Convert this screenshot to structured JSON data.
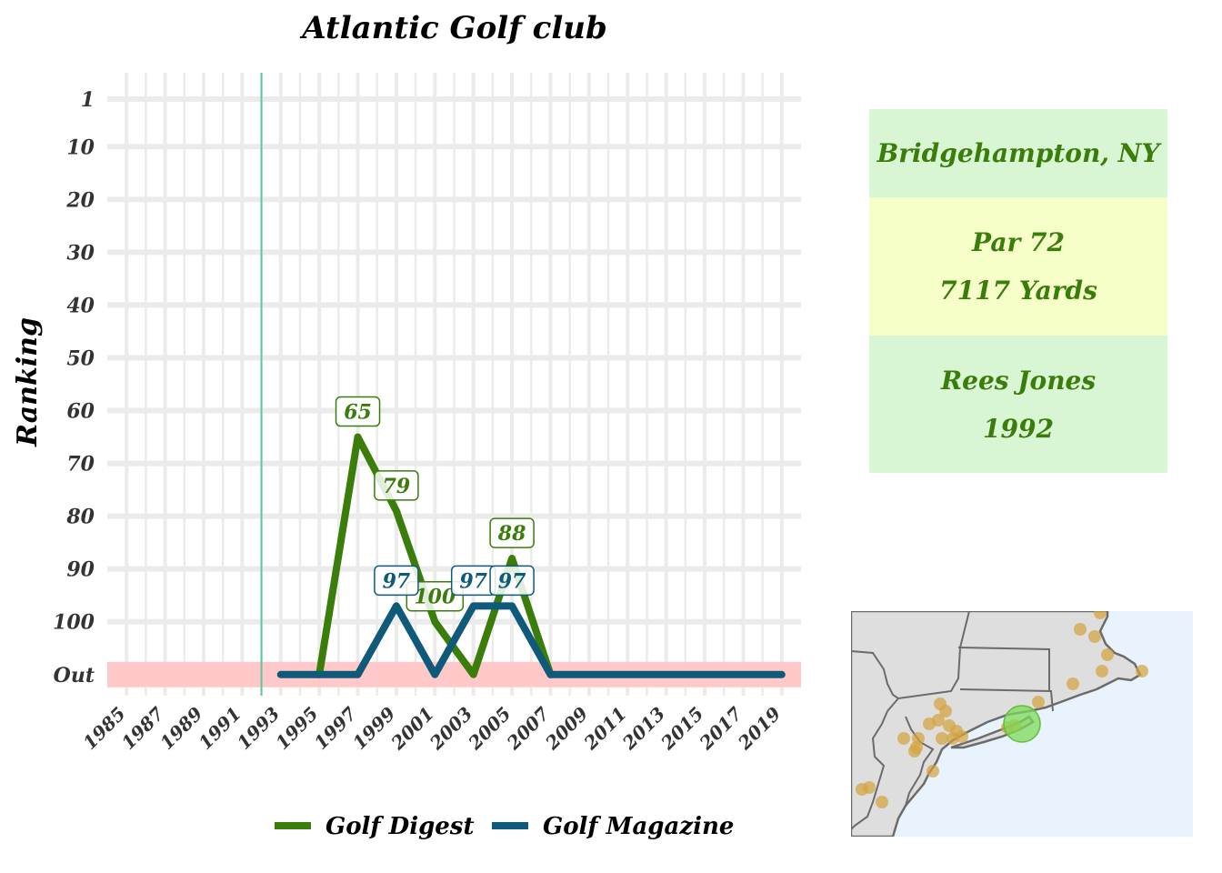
{
  "chart_data": {
    "type": "line",
    "title": "Atlantic Golf club",
    "xlabel": "",
    "ylabel": "Ranking",
    "x_ticks": [
      1985,
      1987,
      1989,
      1991,
      1993,
      1995,
      1997,
      1999,
      2001,
      2003,
      2005,
      2007,
      2009,
      2011,
      2013,
      2015,
      2017,
      2019
    ],
    "y_ticks": [
      1,
      10,
      20,
      30,
      40,
      50,
      60,
      70,
      80,
      90,
      100
    ],
    "y_out_label": "Out",
    "out_value": 110,
    "xlim": [
      1984,
      2020
    ],
    "ylim": [
      -4,
      114
    ],
    "y_reversed": true,
    "grid": true,
    "legend_position": "bottom",
    "opened_year": 1992,
    "series": [
      {
        "name": "Golf Digest",
        "color": "#3a7d0a",
        "x": [
          1995,
          1997,
          1999,
          2001,
          2003,
          2005,
          2007
        ],
        "y": [
          110,
          65,
          79,
          100,
          110,
          88,
          110
        ],
        "labels": [
          {
            "x": 1997,
            "y": 65,
            "text": "65"
          },
          {
            "x": 1999,
            "y": 79,
            "text": "79"
          },
          {
            "x": 2001,
            "y": 100,
            "text": "100"
          },
          {
            "x": 2005,
            "y": 88,
            "text": "88"
          }
        ]
      },
      {
        "name": "Golf Magazine",
        "color": "#0f5a7a",
        "x": [
          1993,
          1995,
          1997,
          1999,
          2001,
          2003,
          2005,
          2007,
          2009,
          2011,
          2013,
          2015,
          2017,
          2019
        ],
        "y": [
          110,
          110,
          110,
          97,
          110,
          97,
          97,
          110,
          110,
          110,
          110,
          110,
          110,
          110
        ],
        "labels": [
          {
            "x": 1999,
            "y": 97,
            "text": "97"
          },
          {
            "x": 2003,
            "y": 97,
            "text": "97"
          },
          {
            "x": 2005,
            "y": 97,
            "text": "97"
          }
        ]
      }
    ]
  },
  "info": {
    "location": "Bridgehampton, NY",
    "par": "Par 72",
    "yards": "7117 Yards",
    "architect": "Rees Jones",
    "year": "1992",
    "colors": {
      "green_box": "#d8f5d4",
      "yellow_box": "#f7ffc8"
    }
  },
  "map": {
    "land_color": "#dedede",
    "water_color": "#e8f3fd",
    "course_marker_color": "#7ed957",
    "other_course_color": "#d4a23c"
  }
}
